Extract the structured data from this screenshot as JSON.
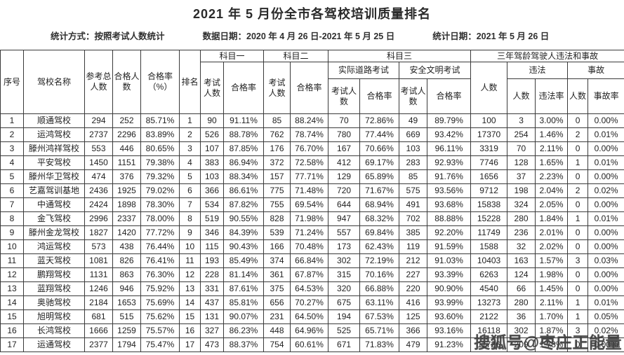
{
  "page": {
    "title": "2021 年 5 月份全市各驾校培训质量排名",
    "meta": {
      "stat_method": "统计方式：按照考试人数统计",
      "data_date": "数据日期：2020 年 4 月 26 日-2021 年 5 月 25 日",
      "stat_date": "统计日期：2021 年 5 月 26 日"
    },
    "watermark": "搜狐号@枣庄正能量"
  },
  "table": {
    "header": {
      "seq": "序号",
      "school_name": "驾校名称",
      "total_candidates": "参考总人数",
      "passed_count": "合格人数",
      "pass_rate_pct": "合格率（%）",
      "rank": "排名",
      "subject1": "科目一",
      "subject2": "科目二",
      "subject3": "科目三",
      "three_year": "三年驾龄驾驶人违法和事故",
      "exam_count": "考试人数",
      "pass_rate": "合格率",
      "road_test": "实际道路考试",
      "civilized_test": "安全文明考试",
      "people_count": "人数",
      "violation": "违法",
      "violation_rate": "违法率",
      "accident": "事故",
      "accident_rate": "事故率"
    },
    "rows": [
      [
        "1",
        "顺通驾校",
        "294",
        "252",
        "85.71%",
        "1",
        "90",
        "91.11%",
        "85",
        "88.24%",
        "70",
        "72.86%",
        "49",
        "89.79%",
        "100",
        "3",
        "3.00%",
        "0",
        "0.00%"
      ],
      [
        "2",
        "运鸿驾校",
        "2737",
        "2296",
        "83.89%",
        "2",
        "526",
        "88.78%",
        "762",
        "78.74%",
        "780",
        "77.44%",
        "669",
        "93.42%",
        "17370",
        "254",
        "1.46%",
        "2",
        "0.01%"
      ],
      [
        "3",
        "滕州鸿祥驾校",
        "553",
        "446",
        "80.65%",
        "3",
        "107",
        "87.85%",
        "176",
        "76.70%",
        "167",
        "70.66%",
        "103",
        "96.11%",
        "3319",
        "70",
        "2.11%",
        "0",
        "0.00%"
      ],
      [
        "4",
        "平安驾校",
        "1450",
        "1151",
        "79.38%",
        "4",
        "383",
        "86.94%",
        "372",
        "72.58%",
        "412",
        "69.17%",
        "283",
        "92.93%",
        "7746",
        "128",
        "1.65%",
        "1",
        "0.01%"
      ],
      [
        "5",
        "滕州华卫驾校",
        "474",
        "376",
        "79.32%",
        "5",
        "103",
        "88.34%",
        "157",
        "77.71%",
        "129",
        "65.89%",
        "85",
        "91.76%",
        "1656",
        "37",
        "2.23%",
        "0",
        "0.00%"
      ],
      [
        "6",
        "艺嘉驾训基地",
        "2436",
        "1925",
        "79.02%",
        "6",
        "366",
        "86.61%",
        "775",
        "71.48%",
        "720",
        "71.67%",
        "575",
        "93.56%",
        "9712",
        "198",
        "2.04%",
        "2",
        "0.02%"
      ],
      [
        "7",
        "中通驾校",
        "2424",
        "1898",
        "78.30%",
        "7",
        "534",
        "87.82%",
        "755",
        "69.54%",
        "644",
        "68.94%",
        "491",
        "93.68%",
        "15838",
        "324",
        "2.05%",
        "0",
        "0.00%"
      ],
      [
        "8",
        "金飞驾校",
        "2996",
        "2337",
        "78.00%",
        "8",
        "519",
        "90.55%",
        "828",
        "71.98%",
        "947",
        "68.32%",
        "702",
        "88.88%",
        "15228",
        "280",
        "1.84%",
        "1",
        "0.01%"
      ],
      [
        "9",
        "滕州金龙驾校",
        "1827",
        "1420",
        "77.72%",
        "9",
        "346",
        "84.39%",
        "539",
        "71.24%",
        "557",
        "69.84%",
        "385",
        "92.20%",
        "11749",
        "236",
        "2.01%",
        "0",
        "0.00%"
      ],
      [
        "10",
        "鸿运驾校",
        "573",
        "438",
        "76.44%",
        "10",
        "115",
        "90.43%",
        "166",
        "70.48%",
        "173",
        "62.43%",
        "119",
        "91.59%",
        "1588",
        "32",
        "2.02%",
        "0",
        "0.00%"
      ],
      [
        "11",
        "蓝天驾校",
        "1081",
        "826",
        "76.41%",
        "11",
        "193",
        "85.49%",
        "374",
        "66.84%",
        "302",
        "72.19%",
        "212",
        "91.03%",
        "10403",
        "163",
        "1.57%",
        "3",
        "0.03%"
      ],
      [
        "12",
        "鹏翔驾校",
        "1131",
        "863",
        "76.30%",
        "12",
        "228",
        "81.14%",
        "361",
        "67.87%",
        "315",
        "70.16%",
        "227",
        "93.39%",
        "6263",
        "124",
        "1.98%",
        "0",
        "0.00%"
      ],
      [
        "13",
        "蓝翔驾校",
        "1246",
        "946",
        "75.92%",
        "13",
        "331",
        "87.61%",
        "375",
        "64.53%",
        "320",
        "66.88%",
        "220",
        "90.90%",
        "4540",
        "66",
        "1.45%",
        "0",
        "0.00%"
      ],
      [
        "14",
        "奥驰驾校",
        "2184",
        "1653",
        "75.69%",
        "14",
        "437",
        "85.81%",
        "656",
        "70.27%",
        "675",
        "63.11%",
        "416",
        "93.99%",
        "13273",
        "280",
        "2.11%",
        "1",
        "0.01%"
      ],
      [
        "15",
        "旭明驾校",
        "681",
        "515",
        "75.62%",
        "15",
        "131",
        "90.07%",
        "231",
        "64.50%",
        "194",
        "67.53%",
        "125",
        "93.60%",
        "2122",
        "36",
        "1.70%",
        "1",
        "0.05%"
      ],
      [
        "16",
        "长鸿驾校",
        "1666",
        "1259",
        "75.57%",
        "16",
        "327",
        "86.23%",
        "448",
        "64.96%",
        "525",
        "65.71%",
        "366",
        "93.16%",
        "16118",
        "302",
        "1.87%",
        "3",
        "0.02%"
      ],
      [
        "17",
        "运通驾校",
        "2377",
        "1794",
        "75.47%",
        "17",
        "473",
        "88.37%",
        "754",
        "60.61%",
        "671",
        "71.83%",
        "479",
        "91.23%",
        "11726",
        "209",
        "1.78%",
        "0",
        "0.00%"
      ]
    ]
  }
}
